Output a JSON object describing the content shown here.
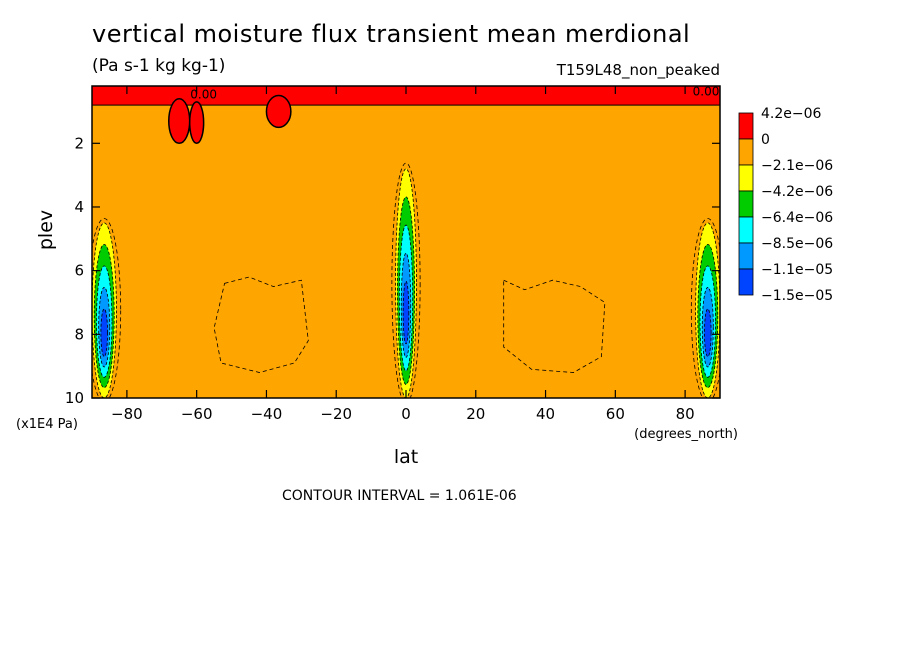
{
  "chart_data": {
    "type": "heatmap",
    "title": "vertical moisture flux transient mean merdional",
    "units": "(Pa s-1 kg kg-1)",
    "experiment": "T159L48_non_peaked",
    "xlabel": "lat",
    "x_units": "(degrees_north)",
    "ylabel": "plev",
    "y_units": "(x1E4 Pa)",
    "xlim": [
      -90,
      90
    ],
    "ylim": [
      10,
      0.2
    ],
    "x_ticks": [
      -80,
      -60,
      -40,
      -20,
      0,
      20,
      40,
      60,
      80
    ],
    "y_ticks": [
      2,
      4,
      6,
      8,
      10
    ],
    "contour_interval_text": "CONTOUR INTERVAL = 1.061E-06",
    "contour_labels": [
      "0.00",
      "0.00"
    ],
    "colorbar": {
      "labels": [
        "4.2e-06",
        "0",
        "-2.1e-06",
        "-4.2e-06",
        "-6.4e-06",
        "-8.5e-06",
        "-1.1e-05",
        "-1.5e-05"
      ],
      "colors": [
        "#ff0000",
        "#ffa500",
        "#ffff00",
        "#00cc00",
        "#00ffff",
        "#0099ff",
        "#0044ff"
      ]
    },
    "background_color": "#ffa500",
    "features": [
      {
        "kind": "positive",
        "color": "#ff0000",
        "lat_range": [
          -90,
          90
        ],
        "plev_range": [
          0.2,
          0.8
        ]
      },
      {
        "kind": "positive",
        "color": "#ff0000",
        "lat_range": [
          -68,
          -62
        ],
        "plev_range": [
          0.6,
          2.0
        ]
      },
      {
        "kind": "positive",
        "color": "#ff0000",
        "lat_range": [
          -62,
          -58
        ],
        "plev_range": [
          0.7,
          2.0
        ]
      },
      {
        "kind": "positive",
        "color": "#ff0000",
        "lat_range": [
          -40,
          -33
        ],
        "plev_range": [
          0.5,
          1.5
        ]
      },
      {
        "kind": "negative",
        "lat_range": [
          -3,
          3
        ],
        "plev_range": [
          2.8,
          10
        ]
      },
      {
        "kind": "negative",
        "lat_range": [
          -90,
          -83
        ],
        "plev_range": [
          4.5,
          10
        ]
      },
      {
        "kind": "negative",
        "lat_range": [
          83,
          90
        ],
        "plev_range": [
          4.5,
          10
        ]
      }
    ]
  }
}
